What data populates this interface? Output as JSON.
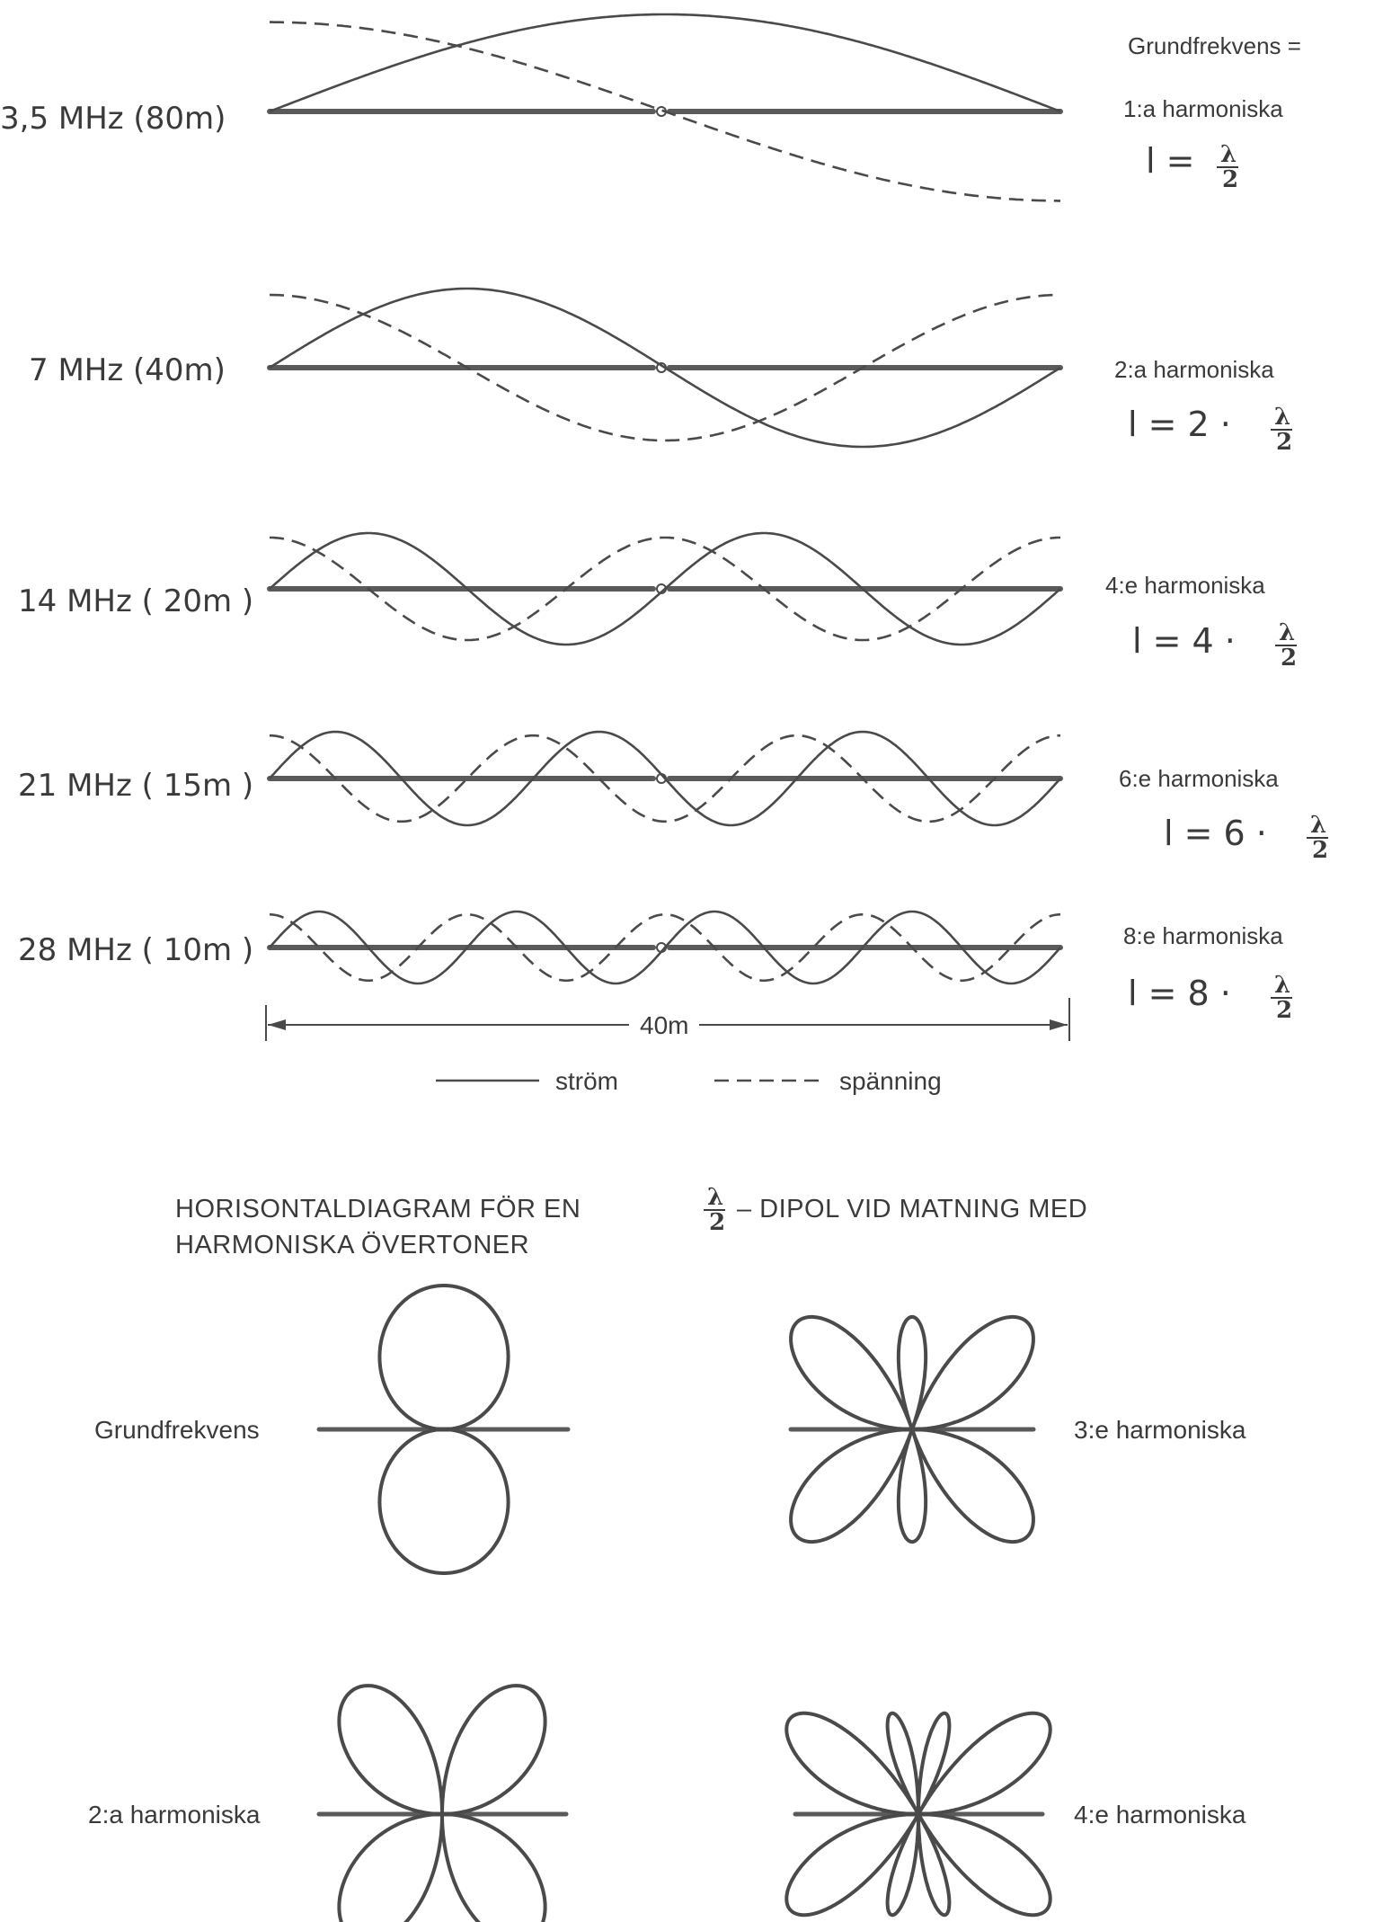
{
  "top_right_label": "Grundfrekvens =",
  "bands": [
    {
      "label": "3,5 MHz (80m)",
      "harmonic": "1:a  harmoniska",
      "eq_prefix": "l  =",
      "multiplier": 1
    },
    {
      "label": "7  MHz (40m)",
      "harmonic": "2:a  harmoniska",
      "eq_prefix": "l  =  2 ·",
      "multiplier": 2
    },
    {
      "label": "14 MHz ( 20m )",
      "harmonic": "4:e  harmoniska",
      "eq_prefix": "l  =  4 ·",
      "multiplier": 4
    },
    {
      "label": "21 MHz ( 15m )",
      "harmonic": "6:e harmoniska",
      "eq_prefix": "l  =  6 ·",
      "multiplier": 6
    },
    {
      "label": "28 MHz ( 10m )",
      "harmonic": "8:e  harmoniska",
      "eq_prefix": "l  =  8 ·",
      "multiplier": 8
    }
  ],
  "fraction": {
    "numerator": "λ",
    "denominator": "2"
  },
  "dimension_label": "40m",
  "legend": {
    "current": "ström",
    "voltage": "spänning"
  },
  "section_title": {
    "line1_before": "HORISONTALDIAGRAM FÖR EN",
    "line1_after": "– DIPOL  VID MATNING MED",
    "line2": "HARMONISKA ÖVERTONER"
  },
  "patterns": [
    {
      "label": "Grundfrekvens",
      "harmonic": 1
    },
    {
      "label": "3:e  harmoniska",
      "harmonic": 3
    },
    {
      "label": "2:a  harmoniska",
      "harmonic": 2
    },
    {
      "label": "4:e  harmoniska",
      "harmonic": 4
    }
  ]
}
